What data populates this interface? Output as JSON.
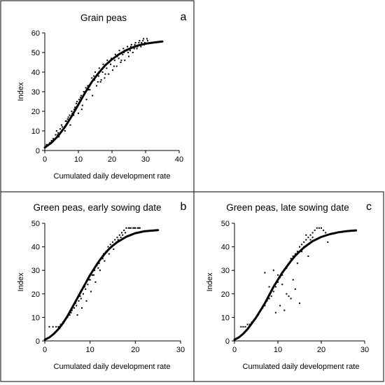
{
  "chart_data": [
    {
      "type": "scatter",
      "panel_label": "a",
      "title": "Grain peas",
      "xlabel": "Cumulated daily development rate",
      "ylabel": "Index",
      "xlim": [
        0,
        40
      ],
      "ylim": [
        0,
        60
      ],
      "xticks": [
        "0",
        "10",
        "20",
        "30",
        "40"
      ],
      "yticks": [
        "0",
        "10",
        "20",
        "30",
        "40",
        "50",
        "60"
      ],
      "grid": false,
      "legend": "none",
      "series": [
        {
          "kind": "points",
          "x": [
            0.5,
            1.5,
            2.5,
            3.2,
            4.0,
            4.6,
            5.2,
            6.0,
            6.4,
            7.0,
            7.6,
            8.2,
            8.8,
            9.4,
            10.0,
            10.6,
            11.2,
            11.8,
            12.4,
            13.0,
            13.6,
            14.2,
            14.8,
            15.4,
            16.0,
            16.6,
            17.2,
            17.8,
            18.4,
            19.0,
            19.6,
            20.2,
            20.8,
            21.4,
            22.0,
            22.6,
            23.2,
            23.8,
            24.4,
            25.0,
            25.6,
            26.2,
            26.8,
            27.4,
            28.0,
            28.6,
            29.2,
            29.8,
            30.4,
            3.5,
            5.0,
            6.8,
            8.0,
            9.0,
            10.2,
            11.6,
            12.8,
            14.0,
            15.0,
            16.2,
            17.4,
            18.6,
            19.8,
            21.0,
            22.2,
            23.4,
            24.6,
            25.8,
            27.0,
            28.2,
            29.4,
            4.2,
            5.8,
            7.4,
            9.6,
            11.0,
            13.4,
            15.8,
            18.0,
            20.6,
            22.8,
            24.8,
            26.6,
            28.8,
            30.6,
            2.0,
            3.8,
            6.2,
            8.6,
            10.8,
            12.2,
            14.6,
            16.8,
            19.2,
            21.6,
            23.6,
            25.4,
            27.6,
            29.6
          ],
          "y": [
            3,
            4,
            6,
            8,
            9,
            11,
            12,
            10,
            15,
            17,
            13,
            19,
            21,
            24,
            19,
            27,
            23,
            29,
            26,
            31,
            34,
            28,
            36,
            33,
            38,
            35,
            40,
            37,
            42,
            39,
            44,
            41,
            46,
            43,
            47,
            45,
            49,
            46,
            51,
            48,
            53,
            50,
            54,
            52,
            55,
            53,
            56,
            55,
            57,
            10,
            13,
            16,
            20,
            22,
            26,
            30,
            33,
            37,
            40,
            42,
            44,
            46,
            47,
            49,
            51,
            52,
            53,
            54,
            55,
            56,
            57,
            7,
            12,
            18,
            25,
            21,
            31,
            35,
            39,
            43,
            46,
            50,
            52,
            55,
            56,
            5,
            8,
            15,
            18,
            28,
            32,
            38,
            36,
            45,
            48,
            50,
            51,
            53,
            54
          ]
        },
        {
          "kind": "fitted-curve",
          "x": [
            0,
            2,
            4,
            6,
            8,
            10,
            12,
            14,
            16,
            18,
            20,
            22,
            24,
            26,
            28,
            30,
            32,
            35
          ],
          "y": [
            1.5,
            4,
            7.5,
            12,
            17.5,
            23.5,
            29.5,
            35,
            39.5,
            43.5,
            46.5,
            49,
            51,
            52.5,
            53.7,
            54.5,
            55,
            55.6
          ]
        }
      ]
    },
    {
      "type": "scatter",
      "panel_label": "b",
      "title": "Green peas, early sowing date",
      "xlabel": "Cumulated daily development rate",
      "ylabel": "Index",
      "xlim": [
        0,
        30
      ],
      "ylim": [
        0,
        50
      ],
      "xticks": [
        "0",
        "10",
        "20",
        "30"
      ],
      "yticks": [
        "0",
        "10",
        "20",
        "30",
        "40",
        "50"
      ],
      "grid": false,
      "legend": "none",
      "series": [
        {
          "kind": "points",
          "x": [
            1.0,
            1.8,
            2.5,
            3.0,
            3.5,
            4.0,
            4.5,
            5.0,
            5.5,
            6.0,
            6.5,
            7.0,
            7.5,
            8.0,
            8.5,
            9.0,
            9.5,
            10.0,
            10.5,
            11.0,
            11.5,
            12.0,
            12.5,
            13.0,
            13.5,
            14.0,
            14.5,
            15.0,
            15.5,
            16.0,
            16.5,
            17.0,
            17.5,
            18.0,
            18.5,
            19.0,
            19.5,
            20.0,
            20.5,
            21.0,
            5.8,
            6.8,
            7.8,
            8.8,
            9.8,
            10.8,
            11.8,
            12.8,
            13.8,
            14.8,
            15.8,
            16.8,
            17.8,
            18.8,
            19.8,
            20.8,
            7.2,
            8.2,
            9.2,
            10.2,
            11.2,
            12.2,
            13.2,
            14.2,
            15.2,
            16.2,
            17.2
          ],
          "y": [
            6,
            6,
            6,
            6,
            7,
            8,
            9,
            10,
            11,
            13,
            14,
            15,
            17,
            18,
            20,
            22,
            24,
            26,
            28,
            30,
            32,
            33,
            35,
            37,
            38,
            40,
            41,
            42,
            43,
            44,
            45,
            46,
            47,
            48,
            48,
            48,
            48,
            48,
            48,
            48,
            12,
            16,
            19,
            23,
            26,
            28,
            31,
            35,
            38,
            40,
            42,
            44,
            46,
            48,
            48,
            48,
            11,
            14,
            17,
            21,
            25,
            30,
            34,
            37,
            39,
            43,
            45
          ]
        },
        {
          "kind": "fitted-curve",
          "x": [
            0,
            1,
            2,
            3,
            4,
            5,
            6,
            7,
            8,
            9,
            10,
            11,
            12,
            13,
            14,
            15,
            16,
            18,
            20,
            22,
            25
          ],
          "y": [
            0.5,
            1.5,
            3,
            5,
            7.5,
            10.5,
            14,
            17.5,
            21,
            24.5,
            28,
            31,
            34,
            36.5,
            38.7,
            40.5,
            42,
            44.3,
            45.8,
            46.6,
            47.1
          ]
        }
      ]
    },
    {
      "type": "scatter",
      "panel_label": "c",
      "title": "Green peas, late sowing date",
      "xlabel": "Cumulated daily development rate",
      "ylabel": "Index",
      "xlim": [
        0,
        30
      ],
      "ylim": [
        0,
        50
      ],
      "xticks": [
        "0",
        "10",
        "20",
        "30"
      ],
      "yticks": [
        "0",
        "10",
        "20",
        "30",
        "40",
        "50"
      ],
      "grid": false,
      "legend": "none",
      "series": [
        {
          "kind": "points",
          "x": [
            1.5,
            2.0,
            2.5,
            3.0,
            3.5,
            4.0,
            4.5,
            5.0,
            5.5,
            6.0,
            6.5,
            7.0,
            7.5,
            8.0,
            8.5,
            9.0,
            9.5,
            10.0,
            10.5,
            11.0,
            11.5,
            12.0,
            12.5,
            13.0,
            13.5,
            14.0,
            14.5,
            15.0,
            15.5,
            16.0,
            16.5,
            17.0,
            17.5,
            18.0,
            18.5,
            19.0,
            19.5,
            20.0,
            20.5,
            21.0,
            21.5,
            9.0,
            10.0,
            11.0,
            12.0,
            13.0,
            14.0,
            15.0,
            16.0,
            17.0,
            18.0,
            10.5,
            11.5,
            12.5,
            13.5,
            14.5,
            15.5,
            16.5,
            17.5,
            7.0,
            8.0,
            9.5
          ],
          "y": [
            6,
            6,
            6,
            7,
            7,
            8,
            9,
            10,
            11,
            13,
            14,
            15,
            17,
            18,
            19,
            21,
            23,
            25,
            27,
            28,
            30,
            31,
            33,
            35,
            36,
            37,
            38,
            40,
            41,
            42,
            43,
            44,
            45,
            46,
            47,
            48,
            48,
            48,
            47,
            46,
            42,
            30,
            28,
            24,
            20,
            18,
            22,
            16,
            40,
            36,
            44,
            15,
            13,
            19,
            26,
            33,
            38,
            45,
            43,
            29,
            23,
            12
          ]
        },
        {
          "kind": "fitted-curve",
          "x": [
            0,
            1,
            2,
            3,
            4,
            5,
            6,
            7,
            8,
            9,
            10,
            11,
            12,
            13,
            14,
            15,
            16,
            18,
            20,
            22,
            24,
            26,
            28
          ],
          "y": [
            0.5,
            1.5,
            3,
            5,
            7.5,
            10,
            13,
            16,
            19.5,
            23,
            26,
            29,
            31.5,
            34,
            36.2,
            38,
            39.7,
            42.4,
            44.2,
            45.4,
            46.2,
            46.7,
            47
          ]
        }
      ]
    }
  ]
}
